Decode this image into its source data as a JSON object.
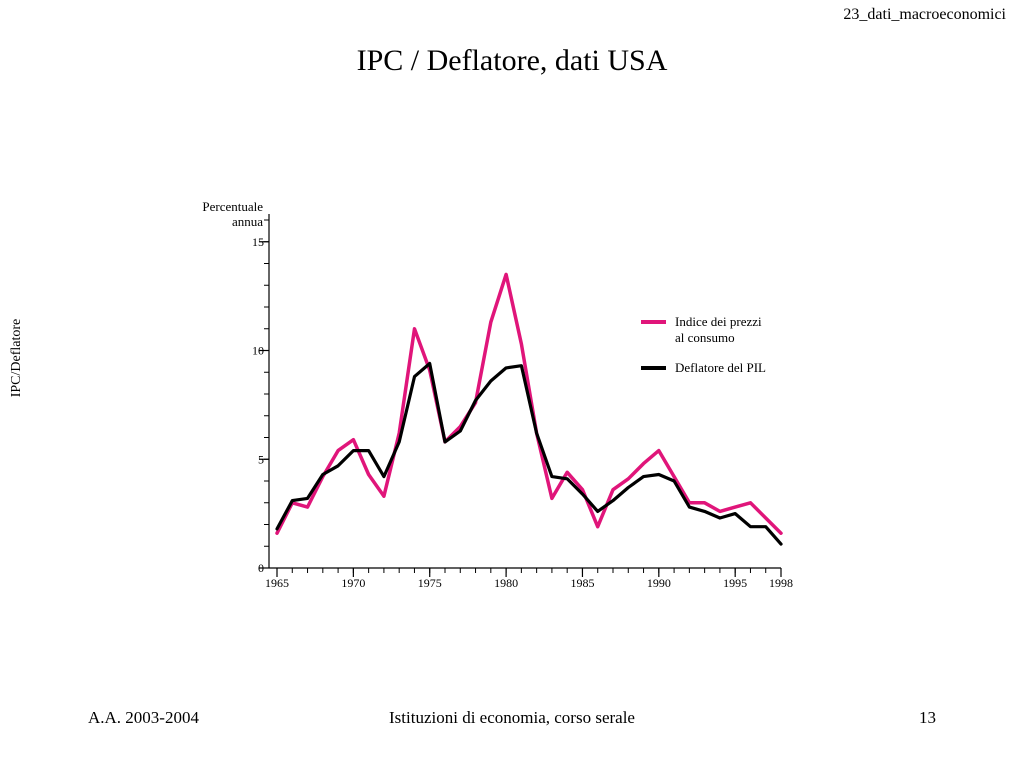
{
  "header": {
    "corner_label": "23_dati_macroeconomici",
    "title": "IPC / Deflatore, dati USA"
  },
  "side_label": "IPC/Deflatore",
  "footer": {
    "left": "A.A. 2003-2004",
    "center": "Istituzioni di economia, corso serale",
    "right": "13"
  },
  "chart_data": {
    "type": "line",
    "ylabel": "Percentuale annua",
    "ylabel_lines": [
      "Percentuale",
      "annua"
    ],
    "ylim": [
      0,
      16
    ],
    "xlim": [
      1965,
      1998
    ],
    "yticks": [
      0,
      5,
      10,
      15
    ],
    "xticks": [
      1965,
      1970,
      1975,
      1980,
      1985,
      1990,
      1995,
      1998
    ],
    "legend_position": "right",
    "x": [
      1965,
      1966,
      1967,
      1968,
      1969,
      1970,
      1971,
      1972,
      1973,
      1974,
      1975,
      1976,
      1977,
      1978,
      1979,
      1980,
      1981,
      1982,
      1983,
      1984,
      1985,
      1986,
      1987,
      1988,
      1989,
      1990,
      1991,
      1992,
      1993,
      1994,
      1995,
      1996,
      1997,
      1998
    ],
    "series": [
      {
        "name": "Indice dei prezzi al consumo",
        "legend_lines": [
          "Indice dei prezzi",
          "al consumo"
        ],
        "color": "#e0157a",
        "values": [
          1.6,
          3.0,
          2.8,
          4.2,
          5.4,
          5.9,
          4.3,
          3.3,
          6.2,
          11.0,
          9.1,
          5.8,
          6.5,
          7.6,
          11.3,
          13.5,
          10.3,
          6.2,
          3.2,
          4.4,
          3.6,
          1.9,
          3.6,
          4.1,
          4.8,
          5.4,
          4.2,
          3.0,
          3.0,
          2.6,
          2.8,
          3.0,
          2.3,
          1.6
        ]
      },
      {
        "name": "Deflatore del PIL",
        "legend_lines": [
          "Deflatore del PIL"
        ],
        "color": "#000000",
        "values": [
          1.8,
          3.1,
          3.2,
          4.3,
          4.7,
          5.4,
          5.4,
          4.2,
          5.8,
          8.8,
          9.4,
          5.8,
          6.3,
          7.7,
          8.6,
          9.2,
          9.3,
          6.2,
          4.2,
          4.1,
          3.4,
          2.6,
          3.1,
          3.7,
          4.2,
          4.3,
          4.0,
          2.8,
          2.6,
          2.3,
          2.5,
          1.9,
          1.9,
          1.1
        ]
      }
    ]
  }
}
